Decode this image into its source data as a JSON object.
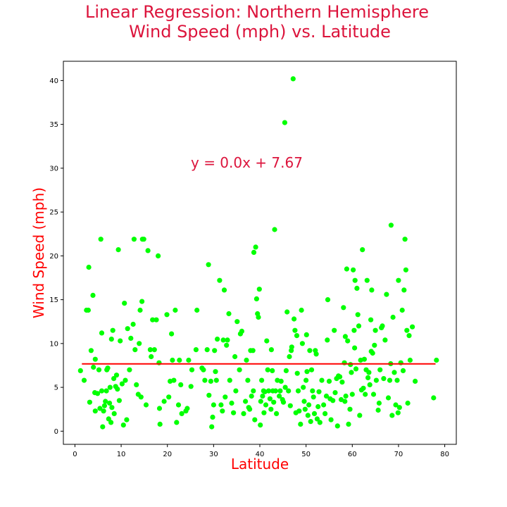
{
  "chart_data": {
    "type": "scatter",
    "title_line1": "Linear Regression: Northern Hemisphere",
    "title_line2": "Wind Speed (mph) vs. Latitude",
    "xlabel": "Latitude",
    "ylabel": "Wind Speed (mph)",
    "xlim": [
      -2.5,
      82.5
    ],
    "ylim": [
      -1.5,
      42.2
    ],
    "xticks": [
      0,
      10,
      20,
      30,
      40,
      50,
      60,
      70,
      80
    ],
    "yticks": [
      0,
      5,
      10,
      15,
      20,
      25,
      30,
      35,
      40
    ],
    "grid": false,
    "annotation": {
      "text": "y = 0.0x + 7.67",
      "x": 25,
      "y": 30
    },
    "regression": {
      "slope": 0.0,
      "intercept": 7.67,
      "x_range": [
        1.5,
        78
      ]
    },
    "colors": {
      "points": "#00ff00",
      "line": "#ff0000",
      "title": "#dc143c",
      "axis_label": "#ff0000"
    },
    "points": [
      [
        1.2,
        6.9
      ],
      [
        2.0,
        5.8
      ],
      [
        2.5,
        13.8
      ],
      [
        2.9,
        13.8
      ],
      [
        3.0,
        18.7
      ],
      [
        3.2,
        3.3
      ],
      [
        3.5,
        9.2
      ],
      [
        3.9,
        15.5
      ],
      [
        4.0,
        7.3
      ],
      [
        4.4,
        8.2
      ],
      [
        4.3,
        4.4
      ],
      [
        4.4,
        2.3
      ],
      [
        4.9,
        4.3
      ],
      [
        5.2,
        7.0
      ],
      [
        5.4,
        2.6
      ],
      [
        5.6,
        21.9
      ],
      [
        5.8,
        11.2
      ],
      [
        6.0,
        0.5
      ],
      [
        5.8,
        4.6
      ],
      [
        6.2,
        2.3
      ],
      [
        6.4,
        2.9
      ],
      [
        6.6,
        3.4
      ],
      [
        6.8,
        4.6
      ],
      [
        6.9,
        7.0
      ],
      [
        7.1,
        7.2
      ],
      [
        7.3,
        1.4
      ],
      [
        7.5,
        3.2
      ],
      [
        7.6,
        5.0
      ],
      [
        7.8,
        1.0
      ],
      [
        7.9,
        10.5
      ],
      [
        8.0,
        2.7
      ],
      [
        8.2,
        11.5
      ],
      [
        8.4,
        6.0
      ],
      [
        8.5,
        2.0
      ],
      [
        8.8,
        5.1
      ],
      [
        9.0,
        6.4
      ],
      [
        9.2,
        4.8
      ],
      [
        9.4,
        20.7
      ],
      [
        9.6,
        3.5
      ],
      [
        9.8,
        10.3
      ],
      [
        10.2,
        5.4
      ],
      [
        10.5,
        0.7
      ],
      [
        10.7,
        14.6
      ],
      [
        10.9,
        5.8
      ],
      [
        11.2,
        1.3
      ],
      [
        11.4,
        11.7
      ],
      [
        11.8,
        7.0
      ],
      [
        12.1,
        10.6
      ],
      [
        12.6,
        12.2
      ],
      [
        12.8,
        21.9
      ],
      [
        13.0,
        9.3
      ],
      [
        13.3,
        5.3
      ],
      [
        13.7,
        4.2
      ],
      [
        13.9,
        10.0
      ],
      [
        14.1,
        13.8
      ],
      [
        14.3,
        3.9
      ],
      [
        14.5,
        14.8
      ],
      [
        14.6,
        21.9
      ],
      [
        14.9,
        21.9
      ],
      [
        15.4,
        3.0
      ],
      [
        15.8,
        20.6
      ],
      [
        16.3,
        9.3
      ],
      [
        16.5,
        8.5
      ],
      [
        16.8,
        12.7
      ],
      [
        17.2,
        9.3
      ],
      [
        17.6,
        12.7
      ],
      [
        18.0,
        20.0
      ],
      [
        18.2,
        7.8
      ],
      [
        18.4,
        0.8
      ],
      [
        18.3,
        2.6
      ],
      [
        19.3,
        3.4
      ],
      [
        19.9,
        13.3
      ],
      [
        20.3,
        3.9
      ],
      [
        20.6,
        5.7
      ],
      [
        20.9,
        11.1
      ],
      [
        21.1,
        8.1
      ],
      [
        21.4,
        5.8
      ],
      [
        21.7,
        13.8
      ],
      [
        22.0,
        1.0
      ],
      [
        22.4,
        3.0
      ],
      [
        22.6,
        8.1
      ],
      [
        22.9,
        5.3
      ],
      [
        23.1,
        2.0
      ],
      [
        24.0,
        2.3
      ],
      [
        24.3,
        2.6
      ],
      [
        24.6,
        8.1
      ],
      [
        25.1,
        5.1
      ],
      [
        25.3,
        7.0
      ],
      [
        26.2,
        9.3
      ],
      [
        26.4,
        13.8
      ],
      [
        27.5,
        7.2
      ],
      [
        27.8,
        7.0
      ],
      [
        28.1,
        5.8
      ],
      [
        28.6,
        9.3
      ],
      [
        28.9,
        19.0
      ],
      [
        29.0,
        4.1
      ],
      [
        29.4,
        5.7
      ],
      [
        29.6,
        0.5
      ],
      [
        29.8,
        1.6
      ],
      [
        30.0,
        3.0
      ],
      [
        30.2,
        9.2
      ],
      [
        30.4,
        6.8
      ],
      [
        30.6,
        5.8
      ],
      [
        30.8,
        10.5
      ],
      [
        31.3,
        17.2
      ],
      [
        31.6,
        3.0
      ],
      [
        31.9,
        2.3
      ],
      [
        32.1,
        10.4
      ],
      [
        32.3,
        16.1
      ],
      [
        32.5,
        3.9
      ],
      [
        32.8,
        9.8
      ],
      [
        33.0,
        10.4
      ],
      [
        33.3,
        13.4
      ],
      [
        33.5,
        5.8
      ],
      [
        33.9,
        3.2
      ],
      [
        34.3,
        2.1
      ],
      [
        34.6,
        8.5
      ],
      [
        34.8,
        4.6
      ],
      [
        35.1,
        12.5
      ],
      [
        35.6,
        7.0
      ],
      [
        35.8,
        11.1
      ],
      [
        36.1,
        11.4
      ],
      [
        36.5,
        2.0
      ],
      [
        36.9,
        3.4
      ],
      [
        37.1,
        8.1
      ],
      [
        37.4,
        5.8
      ],
      [
        37.6,
        2.7
      ],
      [
        37.8,
        2.5
      ],
      [
        38.0,
        9.2
      ],
      [
        38.2,
        4.0
      ],
      [
        38.5,
        9.2
      ],
      [
        38.6,
        4.6
      ],
      [
        38.7,
        20.4
      ],
      [
        38.9,
        1.3
      ],
      [
        39.1,
        21.0
      ],
      [
        39.3,
        15.1
      ],
      [
        39.5,
        13.4
      ],
      [
        39.7,
        13.0
      ],
      [
        39.9,
        16.2
      ],
      [
        40.1,
        0.7
      ],
      [
        40.2,
        3.4
      ],
      [
        40.4,
        5.8
      ],
      [
        40.6,
        4.0
      ],
      [
        40.8,
        4.6
      ],
      [
        40.9,
        2.1
      ],
      [
        41.1,
        4.5
      ],
      [
        41.3,
        3.0
      ],
      [
        41.5,
        10.3
      ],
      [
        41.7,
        7.0
      ],
      [
        41.9,
        4.6
      ],
      [
        42.2,
        3.7
      ],
      [
        42.4,
        2.5
      ],
      [
        42.5,
        9.3
      ],
      [
        42.7,
        6.9
      ],
      [
        42.8,
        4.6
      ],
      [
        43.0,
        3.3
      ],
      [
        43.2,
        23.0
      ],
      [
        43.4,
        4.6
      ],
      [
        43.6,
        2.0
      ],
      [
        43.8,
        5.8
      ],
      [
        44.2,
        4.0
      ],
      [
        44.4,
        4.6
      ],
      [
        44.6,
        5.7
      ],
      [
        44.9,
        3.6
      ],
      [
        45.1,
        3.3
      ],
      [
        45.4,
        35.2
      ],
      [
        45.5,
        5.0
      ],
      [
        45.7,
        6.9
      ],
      [
        45.9,
        13.6
      ],
      [
        46.2,
        4.6
      ],
      [
        46.4,
        8.5
      ],
      [
        46.6,
        2.9
      ],
      [
        46.8,
        9.2
      ],
      [
        46.9,
        9.6
      ],
      [
        47.2,
        40.2
      ],
      [
        47.4,
        12.8
      ],
      [
        47.6,
        11.5
      ],
      [
        47.8,
        2.1
      ],
      [
        48.0,
        10.9
      ],
      [
        48.1,
        6.6
      ],
      [
        48.3,
        4.6
      ],
      [
        48.5,
        2.3
      ],
      [
        48.8,
        0.8
      ],
      [
        49.0,
        13.8
      ],
      [
        49.2,
        10.0
      ],
      [
        49.4,
        5.0
      ],
      [
        49.6,
        3.4
      ],
      [
        49.8,
        2.5
      ],
      [
        50.0,
        5.8
      ],
      [
        50.1,
        11.0
      ],
      [
        50.2,
        6.8
      ],
      [
        50.4,
        1.8
      ],
      [
        50.6,
        3.0
      ],
      [
        50.8,
        9.2
      ],
      [
        51.0,
        1.1
      ],
      [
        51.2,
        7.0
      ],
      [
        51.4,
        4.6
      ],
      [
        51.6,
        3.9
      ],
      [
        51.8,
        2.0
      ],
      [
        52.0,
        9.2
      ],
      [
        52.2,
        8.8
      ],
      [
        52.4,
        1.4
      ],
      [
        52.6,
        2.8
      ],
      [
        52.8,
        4.5
      ],
      [
        53.0,
        1.0
      ],
      [
        53.4,
        5.8
      ],
      [
        53.8,
        3.0
      ],
      [
        54.1,
        2.0
      ],
      [
        54.4,
        4.0
      ],
      [
        54.6,
        10.4
      ],
      [
        54.7,
        15.0
      ],
      [
        55.0,
        5.7
      ],
      [
        55.2,
        3.7
      ],
      [
        55.4,
        1.3
      ],
      [
        55.8,
        3.5
      ],
      [
        56.1,
        11.5
      ],
      [
        56.3,
        4.4
      ],
      [
        56.6,
        6.0
      ],
      [
        56.8,
        0.6
      ],
      [
        57.0,
        6.3
      ],
      [
        57.3,
        6.2
      ],
      [
        57.6,
        3.6
      ],
      [
        57.8,
        5.6
      ],
      [
        58.1,
        14.1
      ],
      [
        58.3,
        7.8
      ],
      [
        58.4,
        3.4
      ],
      [
        58.5,
        10.8
      ],
      [
        58.6,
        4.0
      ],
      [
        58.8,
        18.5
      ],
      [
        59.0,
        10.3
      ],
      [
        59.2,
        0.8
      ],
      [
        59.5,
        2.5
      ],
      [
        59.6,
        7.6
      ],
      [
        59.8,
        6.7
      ],
      [
        60.0,
        4.2
      ],
      [
        60.2,
        18.4
      ],
      [
        60.4,
        11.5
      ],
      [
        60.5,
        9.5
      ],
      [
        60.6,
        17.2
      ],
      [
        60.8,
        7.1
      ],
      [
        61.0,
        16.3
      ],
      [
        61.2,
        13.3
      ],
      [
        61.4,
        12.0
      ],
      [
        61.6,
        1.8
      ],
      [
        61.8,
        8.1
      ],
      [
        62.0,
        4.7
      ],
      [
        62.2,
        20.7
      ],
      [
        62.4,
        4.9
      ],
      [
        62.6,
        8.2
      ],
      [
        62.8,
        4.2
      ],
      [
        63.0,
        7.0
      ],
      [
        63.2,
        17.2
      ],
      [
        63.4,
        6.1
      ],
      [
        63.6,
        6.7
      ],
      [
        63.8,
        5.3
      ],
      [
        64.0,
        12.7
      ],
      [
        64.1,
        9.1
      ],
      [
        64.2,
        16.1
      ],
      [
        64.4,
        8.9
      ],
      [
        64.6,
        4.2
      ],
      [
        64.8,
        9.8
      ],
      [
        65.0,
        11.5
      ],
      [
        65.2,
        5.8
      ],
      [
        65.6,
        2.4
      ],
      [
        65.8,
        3.2
      ],
      [
        66.0,
        7.0
      ],
      [
        66.3,
        11.8
      ],
      [
        66.5,
        12.0
      ],
      [
        66.8,
        6.0
      ],
      [
        67.1,
        10.4
      ],
      [
        67.4,
        15.6
      ],
      [
        67.8,
        3.8
      ],
      [
        68.1,
        5.8
      ],
      [
        68.3,
        7.7
      ],
      [
        68.4,
        23.5
      ],
      [
        68.6,
        1.8
      ],
      [
        68.8,
        13.0
      ],
      [
        69.1,
        6.7
      ],
      [
        69.4,
        3.0
      ],
      [
        69.7,
        5.8
      ],
      [
        69.9,
        2.1
      ],
      [
        70.0,
        17.2
      ],
      [
        70.2,
        2.7
      ],
      [
        70.5,
        7.8
      ],
      [
        70.8,
        13.8
      ],
      [
        71.0,
        6.9
      ],
      [
        71.2,
        16.1
      ],
      [
        71.4,
        21.9
      ],
      [
        71.6,
        18.4
      ],
      [
        71.8,
        11.5
      ],
      [
        72.0,
        3.2
      ],
      [
        72.3,
        10.9
      ],
      [
        72.5,
        8.1
      ],
      [
        73.0,
        11.9
      ],
      [
        73.6,
        5.7
      ],
      [
        77.6,
        3.8
      ],
      [
        78.2,
        8.1
      ]
    ]
  }
}
